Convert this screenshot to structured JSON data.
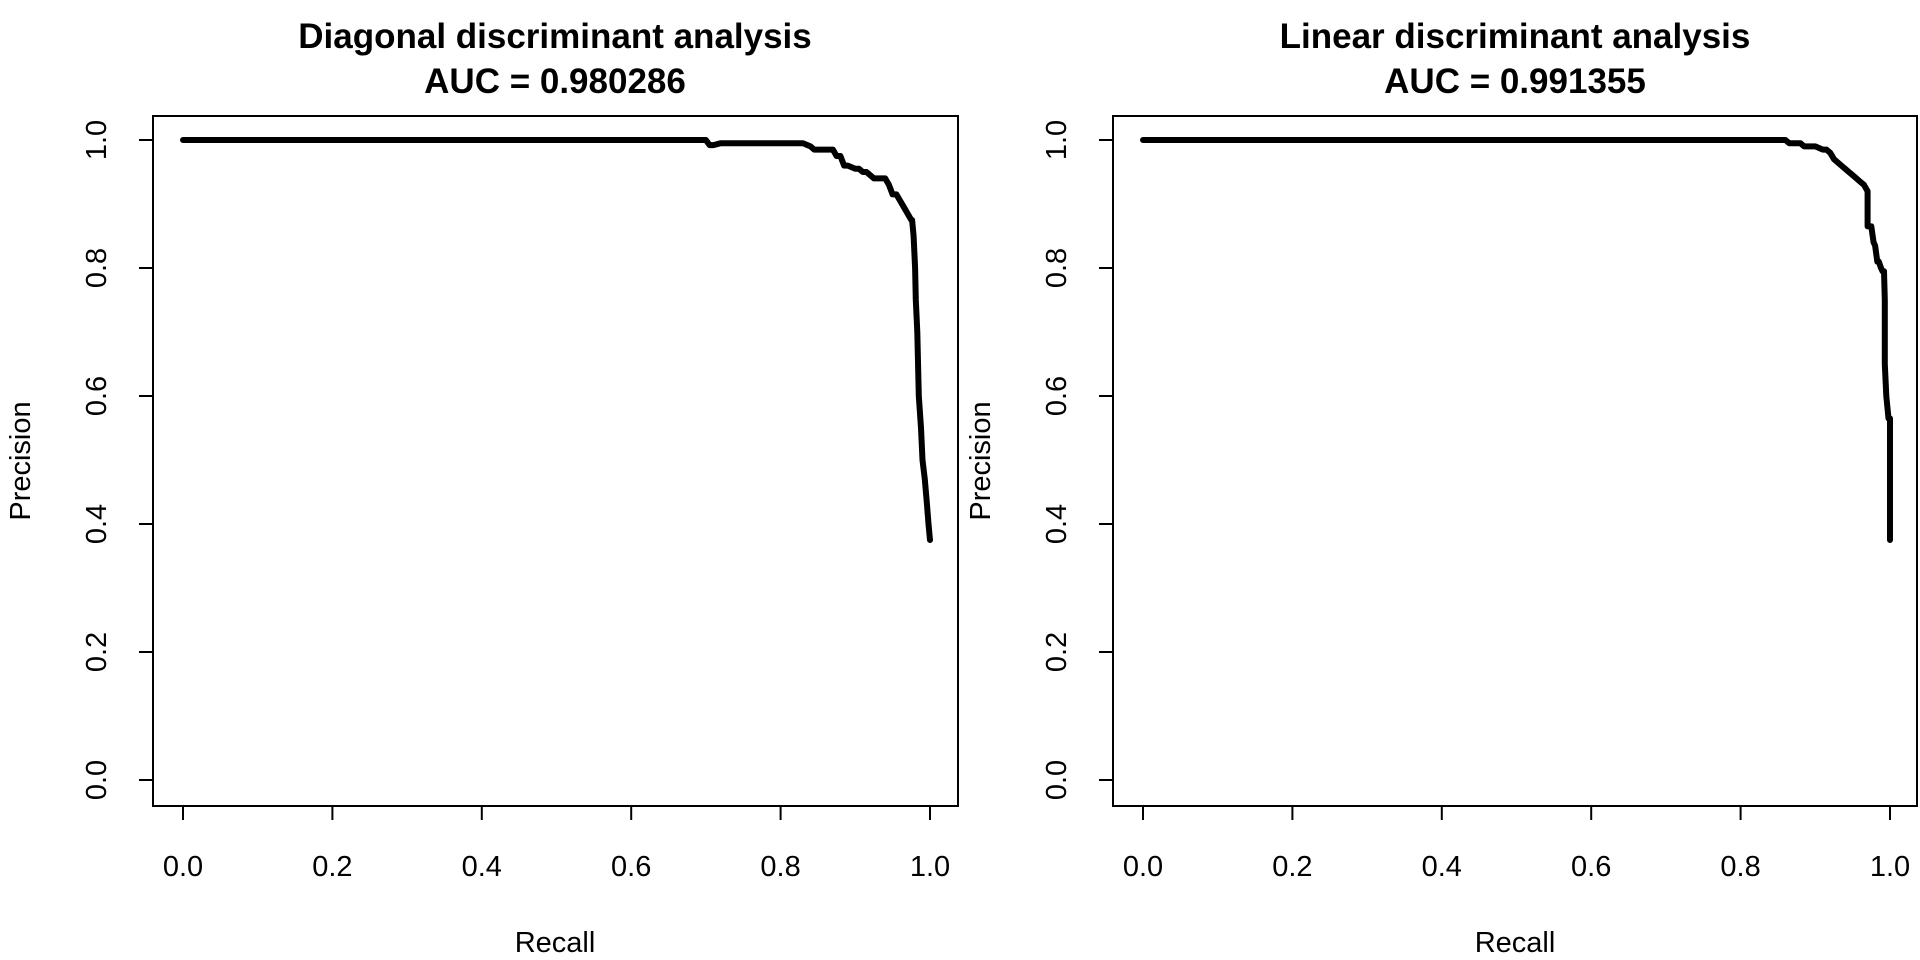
{
  "chart_data": [
    {
      "type": "line",
      "title": "Diagonal discriminant analysis",
      "subtitle": "AUC = 0.980286",
      "xlabel": "Recall",
      "ylabel": "Precision",
      "xlim": [
        0,
        1
      ],
      "ylim": [
        0,
        1
      ],
      "xticks": [
        "0.0",
        "0.2",
        "0.4",
        "0.6",
        "0.8",
        "1.0"
      ],
      "yticks": [
        "0.0",
        "0.2",
        "0.4",
        "0.6",
        "0.8",
        "1.0"
      ],
      "grid": false,
      "series": [
        {
          "x": [
            0.0,
            0.7,
            0.705,
            0.71,
            0.72,
            0.83,
            0.84,
            0.845,
            0.85,
            0.87,
            0.875,
            0.88,
            0.885,
            0.89,
            0.9,
            0.905,
            0.91,
            0.915,
            0.92,
            0.925,
            0.93,
            0.935,
            0.94,
            0.945,
            0.95,
            0.955,
            0.96,
            0.965,
            0.97,
            0.975,
            0.976,
            0.978,
            0.98,
            0.981,
            0.983,
            0.985,
            0.988,
            0.99,
            0.993,
            0.996,
            0.998,
            1.0
          ],
          "y": [
            1.0,
            1.0,
            0.992,
            0.992,
            0.995,
            0.995,
            0.99,
            0.985,
            0.985,
            0.985,
            0.975,
            0.975,
            0.96,
            0.96,
            0.955,
            0.955,
            0.95,
            0.95,
            0.945,
            0.94,
            0.94,
            0.94,
            0.94,
            0.93,
            0.915,
            0.915,
            0.905,
            0.895,
            0.885,
            0.875,
            0.875,
            0.85,
            0.8,
            0.75,
            0.7,
            0.6,
            0.55,
            0.5,
            0.47,
            0.43,
            0.4,
            0.375
          ]
        }
      ]
    },
    {
      "type": "line",
      "title": "Linear discriminant analysis",
      "subtitle": "AUC = 0.991355",
      "xlabel": "Recall",
      "ylabel": "Precision",
      "xlim": [
        0,
        1
      ],
      "ylim": [
        0,
        1
      ],
      "xticks": [
        "0.0",
        "0.2",
        "0.4",
        "0.6",
        "0.8",
        "1.0"
      ],
      "yticks": [
        "0.0",
        "0.2",
        "0.4",
        "0.6",
        "0.8",
        "1.0"
      ],
      "grid": false,
      "series": [
        {
          "x": [
            0.0,
            0.86,
            0.865,
            0.88,
            0.885,
            0.895,
            0.9,
            0.91,
            0.915,
            0.92,
            0.925,
            0.93,
            0.935,
            0.94,
            0.945,
            0.95,
            0.955,
            0.96,
            0.965,
            0.97,
            0.97,
            0.975,
            0.978,
            0.98,
            0.983,
            0.985,
            0.988,
            0.99,
            0.992,
            0.993,
            0.993,
            0.995,
            0.998,
            0.998,
            1.0,
            1.0,
            1.0
          ],
          "y": [
            1.0,
            1.0,
            0.995,
            0.995,
            0.99,
            0.99,
            0.99,
            0.985,
            0.985,
            0.98,
            0.97,
            0.965,
            0.96,
            0.955,
            0.95,
            0.945,
            0.94,
            0.935,
            0.93,
            0.92,
            0.865,
            0.865,
            0.84,
            0.835,
            0.81,
            0.81,
            0.8,
            0.795,
            0.795,
            0.75,
            0.65,
            0.6,
            0.565,
            0.565,
            0.565,
            0.45,
            0.375
          ]
        }
      ]
    }
  ]
}
